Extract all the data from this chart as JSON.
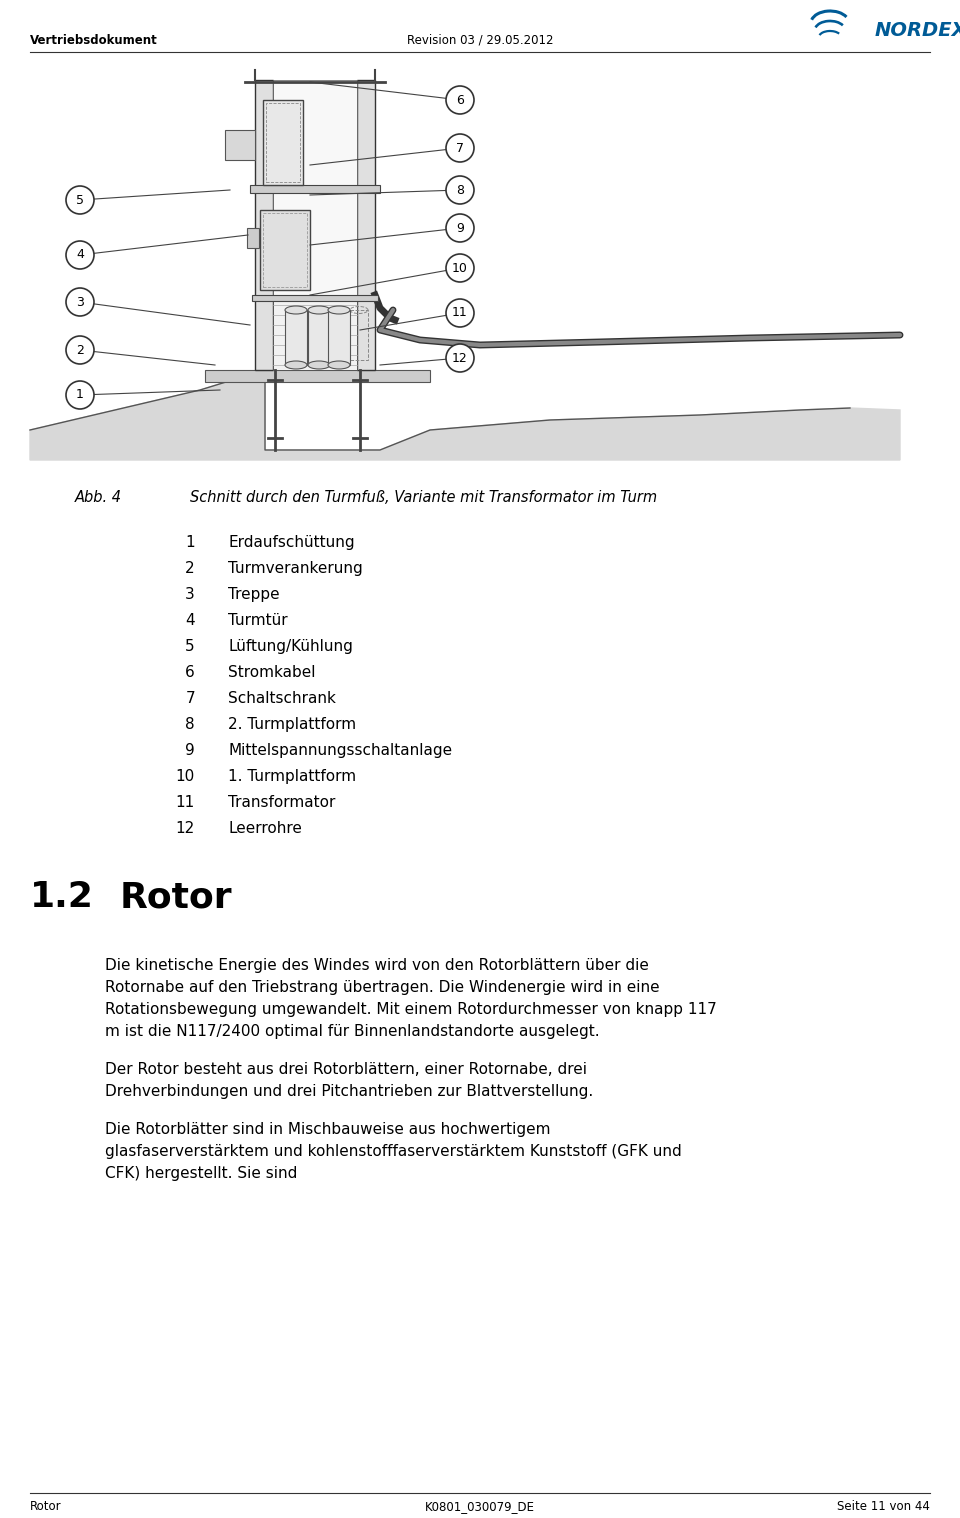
{
  "header_left": "Vertriebsdokument",
  "header_center": "Revision 03 / 29.05.2012",
  "footer_left": "Rotor",
  "footer_center": "K0801_030079_DE",
  "footer_right": "Seite 11 von 44",
  "fig_caption_label": "Abb. 4",
  "fig_caption_text": "Schnitt durch den Turmfuß, Variante mit Transformator im Turm",
  "legend_items": [
    [
      "1",
      "Erdaufschüttung"
    ],
    [
      "2",
      "Turmverankerung"
    ],
    [
      "3",
      "Treppe"
    ],
    [
      "4",
      "Turmtür"
    ],
    [
      "5",
      "Lüftung/Kühlung"
    ],
    [
      "6",
      "Stromkabel"
    ],
    [
      "7",
      "Schaltschrank"
    ],
    [
      "8",
      "2. Turmplattform"
    ],
    [
      "9",
      "Mittelspannungsschaltanlage"
    ],
    [
      "10",
      "1. Turmplattform"
    ],
    [
      "11",
      "Transformator"
    ],
    [
      "12",
      "Leerrohre"
    ]
  ],
  "section_number": "1.2",
  "section_title": "Rotor",
  "body_paragraphs": [
    "Die kinetische Energie des Windes wird von den Rotorblättern über die Rotornabe auf den Triebstrang übertragen. Die Windenergie wird in eine Rotationsbewegung umgewandelt. Mit einem Rotordurchmesser von knapp 117 m ist die N117/2400 optimal für Binnenlandstandorte ausgelegt.",
    "Der Rotor besteht aus drei Rotorblättern, einer Rotornabe, drei Drehverbindungen und drei Pitchantrieben zur Blattverstellung.",
    "Die Rotorblätter sind in Mischbauweise aus hochwertigem glasfaserverstärktem und kohlenstofffaserverstärktem Kunststoff (GFK und CFK) hergestellt. Sie sind"
  ],
  "background_color": "#ffffff",
  "text_color": "#000000",
  "line_color": "#000000",
  "nordex_blue": "#005b96"
}
